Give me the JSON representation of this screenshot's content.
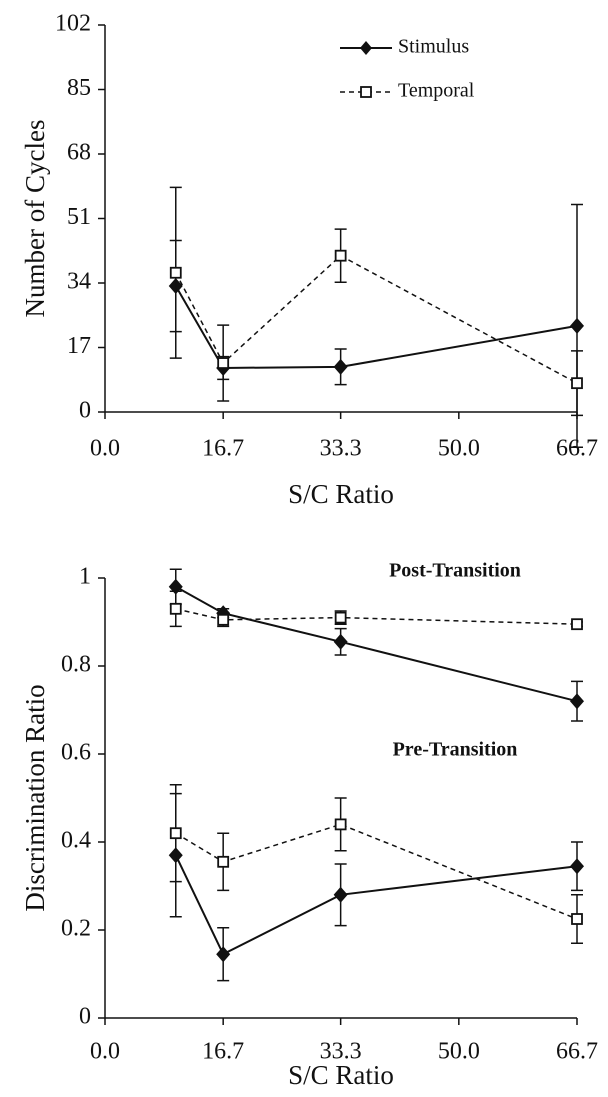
{
  "chart_data": [
    {
      "type": "line",
      "ylabel": "Number of Cycles",
      "xlabel": "S/C Ratio",
      "xlim": [
        0,
        66.7
      ],
      "ylim": [
        0,
        102
      ],
      "xticks": [
        {
          "value": 0,
          "label": "0.0"
        },
        16.7,
        33.3,
        {
          "value": 50,
          "label": "50.0"
        },
        66.7
      ],
      "yticks": [
        0,
        17,
        34,
        51,
        68,
        85,
        102
      ],
      "x": [
        10,
        16.7,
        33.3,
        66.7
      ],
      "legend": "upper right",
      "series": [
        {
          "name": "Stimulus",
          "color": "#111111",
          "marker": "diamond",
          "dashed": false,
          "values": [
            33.2,
            11.6,
            11.9,
            22.7
          ],
          "errors": [
            12,
            3,
            4.7,
            32
          ]
        },
        {
          "name": "Temporal",
          "color": "#111111",
          "marker": "square",
          "dashed": true,
          "values": [
            36.7,
            12.9,
            41.2,
            7.6
          ],
          "errors": [
            22.5,
            10,
            7,
            8.5
          ]
        }
      ]
    },
    {
      "type": "line",
      "ylabel": "Discrimination Ratio",
      "xlabel": "S/C Ratio",
      "xlim": [
        0,
        66.7
      ],
      "ylim": [
        0,
        1
      ],
      "xticks": [
        {
          "value": 0,
          "label": "0.0"
        },
        16.7,
        33.3,
        {
          "value": 50,
          "label": "50.0"
        },
        66.7
      ],
      "yticks": [
        0,
        0.2,
        0.4,
        0.6,
        0.8,
        1
      ],
      "x": [
        10,
        16.7,
        33.3,
        66.7
      ],
      "annotations": [
        "Post-Transition",
        "Pre-Transition"
      ],
      "series": [
        {
          "color": "#111111",
          "marker": "diamond",
          "dashed": false,
          "values": [
            0.98,
            0.92,
            0.855,
            0.72
          ],
          "errors": [
            0.04,
            0.01,
            0.03,
            0.045
          ]
        },
        {
          "color": "#111111",
          "marker": "square",
          "dashed": true,
          "values": [
            0.93,
            0.905,
            0.91,
            0.895
          ],
          "errors": [
            0.04,
            0.015,
            0.015,
            0.005
          ]
        },
        {
          "color": "#111111",
          "marker": "diamond",
          "dashed": false,
          "values": [
            0.37,
            0.145,
            0.28,
            0.345
          ],
          "errors": [
            0.14,
            0.06,
            0.07,
            0.055
          ]
        },
        {
          "color": "#111111",
          "marker": "square",
          "dashed": true,
          "values": [
            0.42,
            0.355,
            0.44,
            0.225
          ],
          "errors": [
            0.11,
            0.065,
            0.06,
            0.055
          ]
        }
      ]
    }
  ]
}
